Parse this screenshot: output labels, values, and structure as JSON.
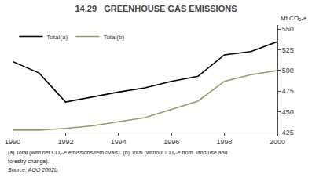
{
  "chart_data": {
    "type": "line",
    "title": "14.29   GREENHOUSE GAS EMISSIONS",
    "ylabel": "Mt CO₂-e",
    "x": [
      1990,
      1991,
      1992,
      1993,
      1994,
      1995,
      1996,
      1997,
      1998,
      1999,
      2000
    ],
    "series": [
      {
        "name": "Total(a)",
        "color": "#000000",
        "values": [
          511,
          497,
          462,
          468,
          474,
          479,
          487,
          493,
          519,
          523,
          535
        ]
      },
      {
        "name": "Total(b)",
        "color": "#999966",
        "values": [
          428,
          428,
          430,
          433,
          438,
          443,
          453,
          463,
          487,
          495,
          500
        ]
      }
    ],
    "xlim": [
      1990,
      2000
    ],
    "xticks": [
      1990,
      1992,
      1994,
      1996,
      1998,
      2000
    ],
    "ylim": [
      425,
      555
    ],
    "yticks": [
      425,
      450,
      475,
      500,
      525,
      550
    ],
    "legend": "upper left",
    "grid": false,
    "annotations": [
      "(a) Total (with net CO₂-e emissions/rem ovals). (b) Total (without CO₂-e from  land use and",
      "forestry change).",
      "Source: AGO 2002b."
    ]
  }
}
